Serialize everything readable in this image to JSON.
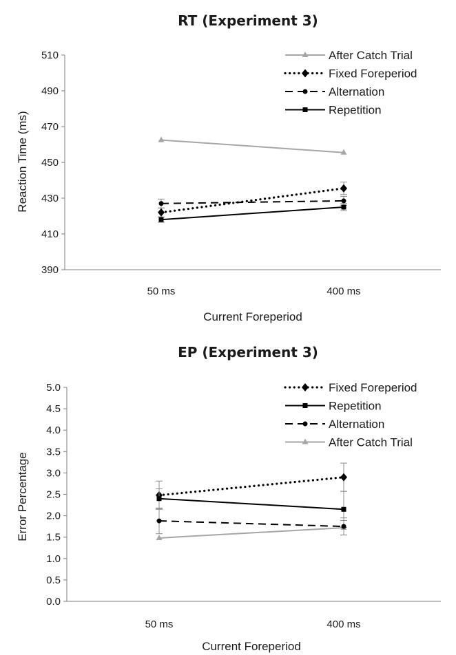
{
  "chart_data": [
    {
      "type": "line",
      "title": "RT (Experiment 3)",
      "xlabel": "Current Foreperiod",
      "ylabel": "Reaction Time (ms)",
      "categories": [
        "50 ms",
        "400 ms"
      ],
      "ylim": [
        390,
        510
      ],
      "yticks": [
        390,
        410,
        430,
        450,
        470,
        490,
        510
      ],
      "ytick_labels": [
        "390",
        "410",
        "430",
        "450",
        "470",
        "490",
        "510"
      ],
      "grid": false,
      "legend_position": "top-right",
      "series": [
        {
          "name": "After Catch Trial",
          "values": [
            462.5,
            455.5
          ],
          "error": [
            0,
            0
          ],
          "color": "#a6a6a6",
          "line": "solid",
          "marker": "triangle"
        },
        {
          "name": "Fixed Foreperiod",
          "values": [
            422,
            435.5
          ],
          "error": [
            2.5,
            3.5
          ],
          "color": "#000000",
          "line": "dotted",
          "marker": "diamond"
        },
        {
          "name": "Alternation",
          "values": [
            427,
            428.5
          ],
          "error": [
            2.5,
            2.5
          ],
          "color": "#000000",
          "line": "dashed",
          "marker": "circle"
        },
        {
          "name": "Repetition",
          "values": [
            418,
            425
          ],
          "error": [
            1.5,
            2
          ],
          "color": "#000000",
          "line": "solid",
          "marker": "square"
        }
      ]
    },
    {
      "type": "line",
      "title": "EP (Experiment 3)",
      "xlabel": "Current Foreperiod",
      "ylabel": "Error Percentage",
      "categories": [
        "50 ms",
        "400 ms"
      ],
      "ylim": [
        0,
        5
      ],
      "yticks": [
        0,
        0.5,
        1,
        1.5,
        2,
        2.5,
        3,
        3.5,
        4,
        4.5,
        5
      ],
      "ytick_labels": [
        "0.0",
        "0.5",
        "1.0",
        "1.5",
        "2.0",
        "2.5",
        "3.0",
        "3.5",
        "4.0",
        "4.5",
        "5.0"
      ],
      "grid": false,
      "legend_position": "top-right",
      "series": [
        {
          "name": "Fixed Foreperiod",
          "values": [
            2.48,
            2.9
          ],
          "error": [
            0.33,
            0.33
          ],
          "color": "#000000",
          "line": "dotted",
          "marker": "diamond"
        },
        {
          "name": "Repetition",
          "values": [
            2.4,
            2.15
          ],
          "error": [
            0.23,
            0.42
          ],
          "color": "#000000",
          "line": "solid",
          "marker": "square"
        },
        {
          "name": "Alternation",
          "values": [
            1.88,
            1.75
          ],
          "error": [
            0.3,
            0.2
          ],
          "color": "#000000",
          "line": "dashed",
          "marker": "circle"
        },
        {
          "name": "After Catch Trial",
          "values": [
            1.48,
            1.72
          ],
          "error": [
            0,
            0.17
          ],
          "color": "#a6a6a6",
          "line": "solid",
          "marker": "triangle"
        }
      ]
    }
  ]
}
